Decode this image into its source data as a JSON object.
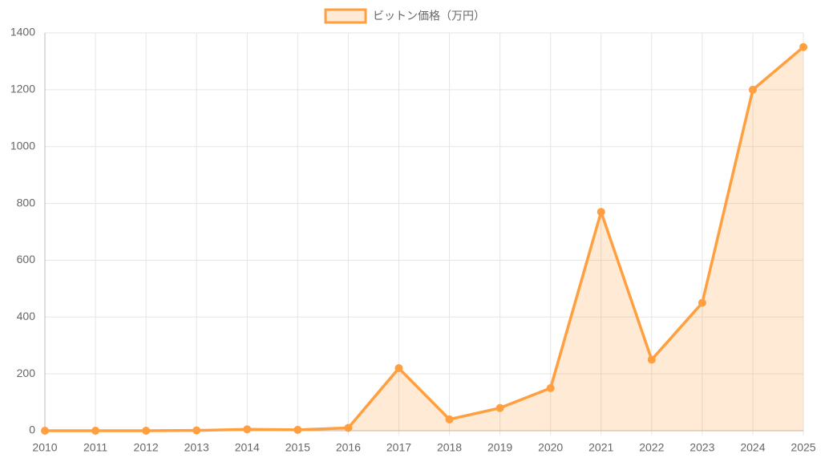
{
  "chart_data": {
    "type": "line",
    "categories": [
      "2010",
      "2011",
      "2012",
      "2013",
      "2014",
      "2015",
      "2016",
      "2017",
      "2018",
      "2019",
      "2020",
      "2021",
      "2022",
      "2023",
      "2024",
      "2025"
    ],
    "series": [
      {
        "name": "ビットン価格（万円）",
        "color": "#ff9f40",
        "values": [
          0,
          0,
          0,
          1,
          5,
          3,
          10,
          220,
          40,
          80,
          150,
          770,
          250,
          450,
          1200,
          1350
        ]
      }
    ],
    "ylim": [
      0,
      1400
    ],
    "yticks": [
      0,
      200,
      400,
      600,
      800,
      1000,
      1200,
      1400
    ],
    "grid": true,
    "fill": true,
    "legend": "top"
  }
}
